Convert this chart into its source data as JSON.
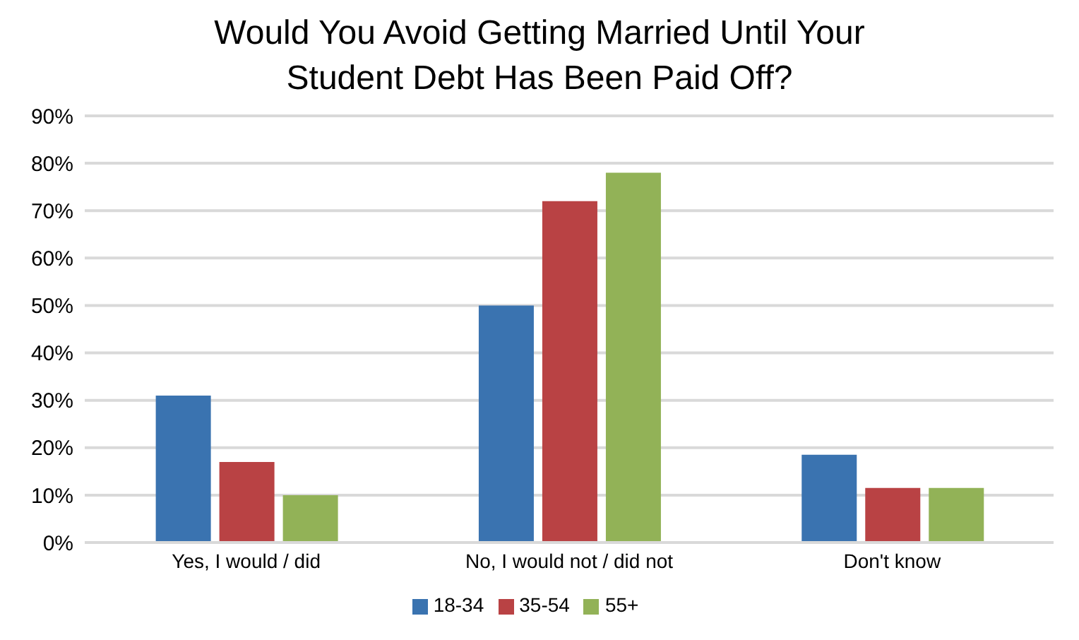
{
  "chart_data": {
    "type": "bar",
    "title": "Would You Avoid Getting Married Until Your Student Debt Has Been Paid Off?",
    "categories": [
      "Yes, I would / did",
      "No, I would not / did not",
      "Don't know"
    ],
    "series": [
      {
        "name": "18-34",
        "color": "#3a73b0",
        "values": [
          31,
          50,
          18.5
        ]
      },
      {
        "name": "35-54",
        "color": "#b94244",
        "values": [
          17,
          72,
          11.5
        ]
      },
      {
        "name": "55+",
        "color": "#92b257",
        "values": [
          10,
          78,
          11.5
        ]
      }
    ],
    "ylim": [
      0,
      90
    ],
    "yticks": [
      {
        "value": 0,
        "label": "0%"
      },
      {
        "value": 10,
        "label": "10%"
      },
      {
        "value": 20,
        "label": "20%"
      },
      {
        "value": 30,
        "label": "30%"
      },
      {
        "value": 40,
        "label": "40%"
      },
      {
        "value": 50,
        "label": "50%"
      },
      {
        "value": 60,
        "label": "60%"
      },
      {
        "value": 70,
        "label": "70%"
      },
      {
        "value": 80,
        "label": "80%"
      },
      {
        "value": 90,
        "label": "90%"
      }
    ],
    "grid": "y",
    "legend": "bottom"
  }
}
